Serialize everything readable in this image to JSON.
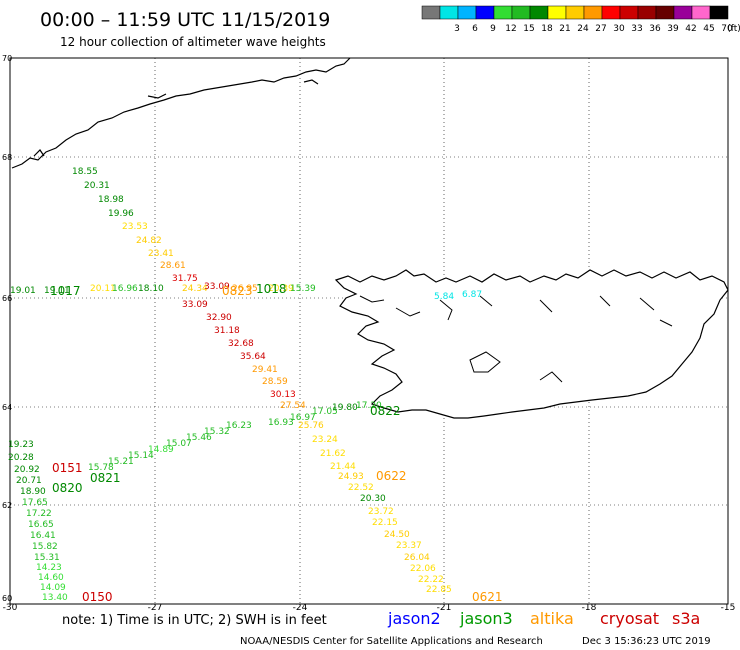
{
  "header": {
    "title": "00:00 – 11:59 UTC 11/15/2019",
    "subtitle": "12 hour collection of altimeter wave heights"
  },
  "legend": {
    "swatches": [
      {
        "label": "",
        "color": "#777777"
      },
      {
        "label": "3",
        "color": "#00e5e5"
      },
      {
        "label": "6",
        "color": "#00b4ff"
      },
      {
        "label": "9",
        "color": "#0000ff"
      },
      {
        "label": "12",
        "color": "#33dd33"
      },
      {
        "label": "15",
        "color": "#22bb22"
      },
      {
        "label": "18",
        "color": "#008800"
      },
      {
        "label": "21",
        "color": "#ffff00"
      },
      {
        "label": "24",
        "color": "#ffcc00"
      },
      {
        "label": "27",
        "color": "#ff9900"
      },
      {
        "label": "30",
        "color": "#ff0000"
      },
      {
        "label": "33",
        "color": "#cc0000"
      },
      {
        "label": "36",
        "color": "#990000"
      },
      {
        "label": "39",
        "color": "#660000"
      },
      {
        "label": "42",
        "color": "#990099"
      },
      {
        "label": "45",
        "color": "#ff66cc"
      },
      {
        "label": "70",
        "color": "#000000"
      }
    ],
    "unit": "(ft)"
  },
  "axes": {
    "lat_ticks": [
      "70",
      "68",
      "66",
      "64",
      "62",
      "60"
    ],
    "lon_ticks": [
      "-30",
      "-27",
      "-24",
      "-21",
      "-18",
      "-15"
    ]
  },
  "note": "note: 1) Time is in UTC; 2) SWH is in feet",
  "satellites": [
    {
      "name": "jason2",
      "color": "#0000ff"
    },
    {
      "name": "jason3",
      "color": "#009900"
    },
    {
      "name": "altika",
      "color": "#ff9900"
    },
    {
      "name": "cryosat",
      "color": "#cc0000"
    },
    {
      "name": "s3a",
      "color": "#cc0000"
    }
  ],
  "footer": {
    "credit": "NOAA/NESDIS Center for Satellite Applications and Research",
    "timestamp": "Dec  3 15:36:23 UTC 2019"
  },
  "readings": {
    "track_a": [
      {
        "v": "18.55",
        "c": "#008800"
      },
      {
        "v": "20.31",
        "c": "#008800"
      },
      {
        "v": "18.98",
        "c": "#008800"
      },
      {
        "v": "19.96",
        "c": "#008800"
      },
      {
        "v": "23.53",
        "c": "#ffdd00"
      },
      {
        "v": "24.82",
        "c": "#ffcc00"
      },
      {
        "v": "23.41",
        "c": "#ffcc00"
      },
      {
        "v": "28.61",
        "c": "#ff9900"
      },
      {
        "v": "31.75",
        "c": "#dd0000"
      },
      {
        "v": "33.09",
        "c": "#cc0000"
      },
      {
        "v": "32.90",
        "c": "#cc0000"
      },
      {
        "v": "31.18",
        "c": "#cc0000"
      },
      {
        "v": "32.68",
        "c": "#cc0000"
      },
      {
        "v": "35.64",
        "c": "#cc0000"
      },
      {
        "v": "29.41",
        "c": "#ff9900"
      },
      {
        "v": "28.59",
        "c": "#ff9900"
      },
      {
        "v": "30.13",
        "c": "#dd0000"
      },
      {
        "v": "27.54",
        "c": "#ff9900"
      },
      {
        "v": "25.76",
        "c": "#ffcc00"
      },
      {
        "v": "23.24",
        "c": "#ffdd00"
      },
      {
        "v": "21.62",
        "c": "#ffdd00"
      },
      {
        "v": "21.44",
        "c": "#ffdd00"
      },
      {
        "v": "24.93",
        "c": "#ffcc00"
      },
      {
        "v": "22.52",
        "c": "#ffdd00"
      },
      {
        "v": "20.30",
        "c": "#008800"
      },
      {
        "v": "23.72",
        "c": "#ffdd00"
      },
      {
        "v": "22.15",
        "c": "#ffdd00"
      },
      {
        "v": "24.50",
        "c": "#ffcc00"
      },
      {
        "v": "23.37",
        "c": "#ffdd00"
      },
      {
        "v": "26.04",
        "c": "#ffcc00"
      },
      {
        "v": "22.06",
        "c": "#ffdd00"
      },
      {
        "v": "22.22",
        "c": "#ffdd00"
      },
      {
        "v": "22.85",
        "c": "#ffdd00"
      }
    ],
    "track_b": [
      {
        "v": "19.23",
        "c": "#008800"
      },
      {
        "v": "20.28",
        "c": "#008800"
      },
      {
        "v": "20.92",
        "c": "#008800"
      },
      {
        "v": "20.71",
        "c": "#008800"
      },
      {
        "v": "18.90",
        "c": "#008800"
      },
      {
        "v": "17.65",
        "c": "#22bb22"
      },
      {
        "v": "17.22",
        "c": "#22bb22"
      },
      {
        "v": "16.65",
        "c": "#22bb22"
      },
      {
        "v": "16.41",
        "c": "#22bb22"
      },
      {
        "v": "15.82",
        "c": "#22bb22"
      },
      {
        "v": "15.31",
        "c": "#22bb22"
      },
      {
        "v": "14.23",
        "c": "#33dd33"
      },
      {
        "v": "14.60",
        "c": "#33dd33"
      },
      {
        "v": "14.09",
        "c": "#33dd33"
      },
      {
        "v": "13.40",
        "c": "#33dd33"
      }
    ],
    "track_c": [
      {
        "v": "15.78",
        "c": "#22bb22"
      },
      {
        "v": "15.21",
        "c": "#22bb22"
      },
      {
        "v": "15.14",
        "c": "#22bb22"
      },
      {
        "v": "14.89",
        "c": "#33dd33"
      },
      {
        "v": "15.07",
        "c": "#22bb22"
      },
      {
        "v": "15.46",
        "c": "#22bb22"
      },
      {
        "v": "15.32",
        "c": "#22bb22"
      },
      {
        "v": "16.23",
        "c": "#22bb22"
      },
      {
        "v": "16.93",
        "c": "#22bb22"
      },
      {
        "v": "16.97",
        "c": "#22bb22"
      },
      {
        "v": "17.05",
        "c": "#22bb22"
      },
      {
        "v": "19.80",
        "c": "#008800"
      },
      {
        "v": "17.20",
        "c": "#22bb22"
      }
    ],
    "track_d": [
      {
        "v": "19.01",
        "c": "#008800"
      },
      {
        "v": "19.11",
        "c": "#008800"
      },
      {
        "v": "20.11",
        "c": "#ffdd00"
      },
      {
        "v": "16.96",
        "c": "#22bb22"
      },
      {
        "v": "18.10",
        "c": "#008800"
      },
      {
        "v": "24.34",
        "c": "#ffcc00"
      },
      {
        "v": "33.09",
        "c": "#cc0000"
      },
      {
        "v": "26.95",
        "c": "#ff9900"
      },
      {
        "v": "20.39",
        "c": "#ffdd00"
      },
      {
        "v": "15.39",
        "c": "#22bb22"
      }
    ],
    "track_e": [
      {
        "v": "5.84",
        "c": "#00e5e5"
      },
      {
        "v": "6.87",
        "c": "#00e5e5"
      }
    ]
  },
  "time_labels": [
    {
      "v": "1017",
      "c": "#008800"
    },
    {
      "v": "1018",
      "c": "#008800"
    },
    {
      "v": "0823",
      "c": "#ff9900"
    },
    {
      "v": "0822",
      "c": "#008800"
    },
    {
      "v": "0622",
      "c": "#ff9900"
    },
    {
      "v": "0151",
      "c": "#cc0000"
    },
    {
      "v": "0821",
      "c": "#008800"
    },
    {
      "v": "0820",
      "c": "#008800"
    },
    {
      "v": "0150",
      "c": "#cc0000"
    },
    {
      "v": "0621",
      "c": "#ff9900"
    }
  ]
}
